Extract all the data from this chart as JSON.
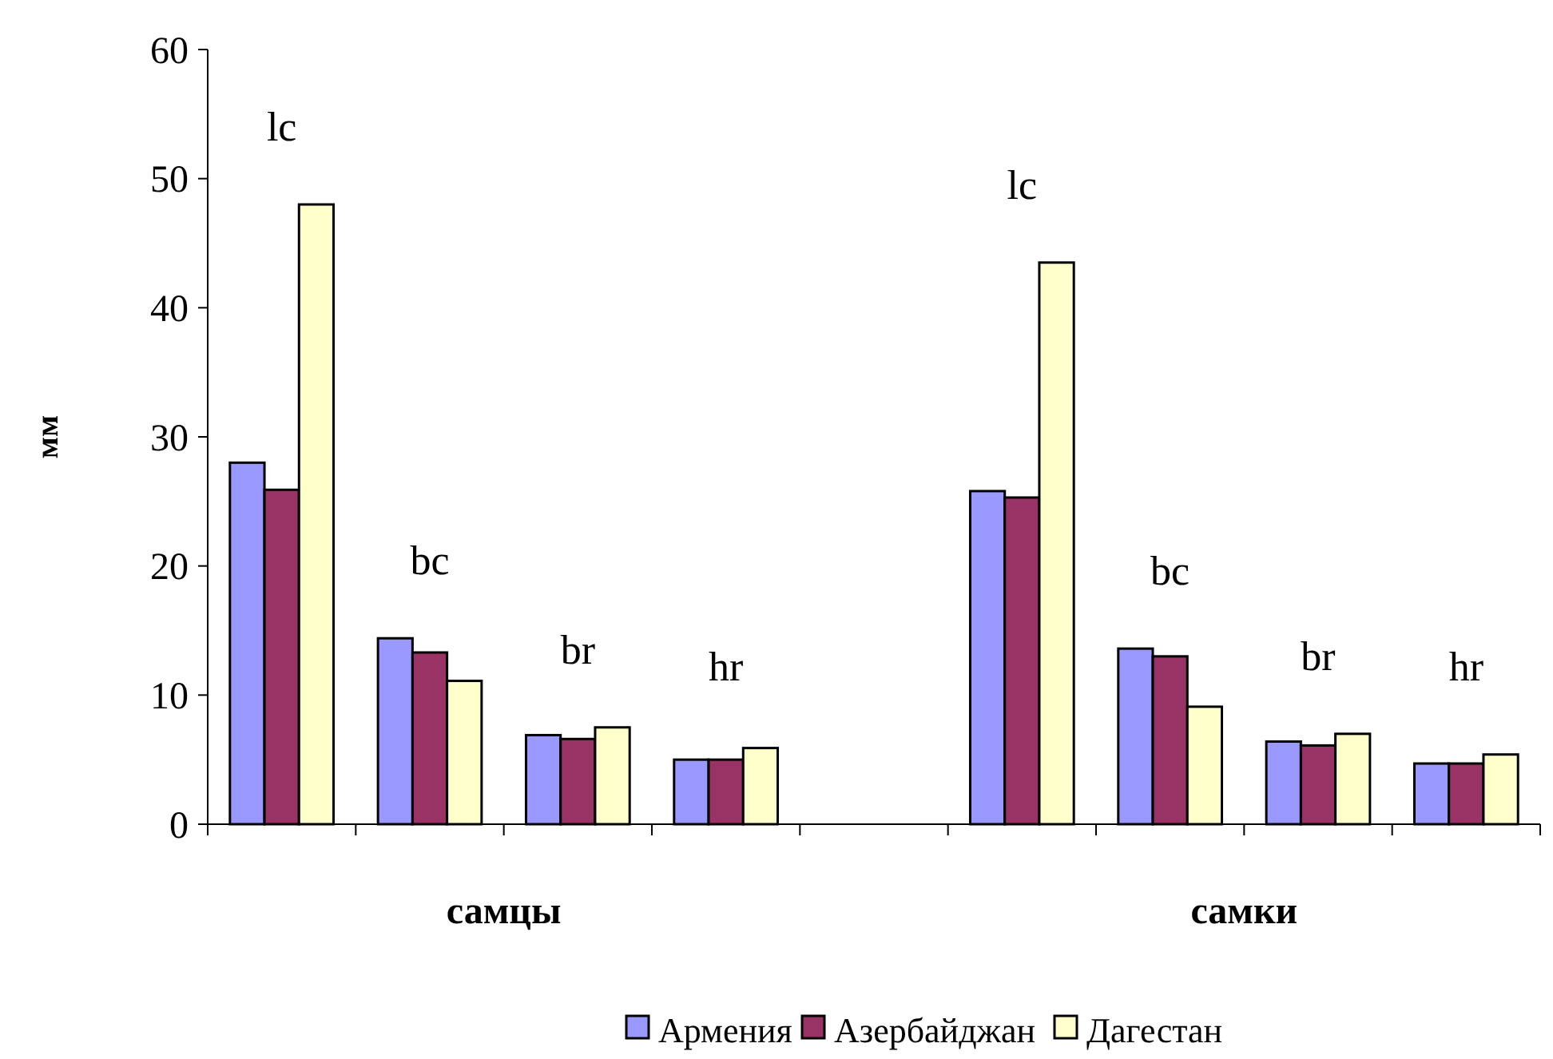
{
  "chart_data": {
    "type": "bar",
    "ylabel": "мм",
    "categories": [
      null,
      null,
      null,
      null,
      null,
      null,
      null,
      null,
      null
    ],
    "series": [
      {
        "name": "Армения",
        "color": "#9999ff",
        "values": [
          28,
          14.4,
          6.9,
          5,
          null,
          25.8,
          13.6,
          6.4,
          4.7
        ]
      },
      {
        "name": "Азербайджан",
        "color": "#993366",
        "values": [
          25.9,
          13.3,
          6.6,
          5,
          null,
          25.3,
          13,
          6.1,
          4.7
        ]
      },
      {
        "name": "Дагестан",
        "color": "#ffffcc",
        "values": [
          48,
          11.1,
          7.5,
          5.9,
          null,
          43.5,
          9.1,
          7,
          5.4
        ]
      }
    ],
    "annotations": [
      "lc",
      "bc",
      "br",
      "hr",
      "lc",
      "bc",
      "br",
      "hr",
      "самцы",
      "самки"
    ],
    "ylim": [
      0,
      60
    ],
    "yticks": [
      0,
      10,
      20,
      30,
      40,
      50,
      60
    ],
    "grid": false,
    "legend": "bottom"
  }
}
